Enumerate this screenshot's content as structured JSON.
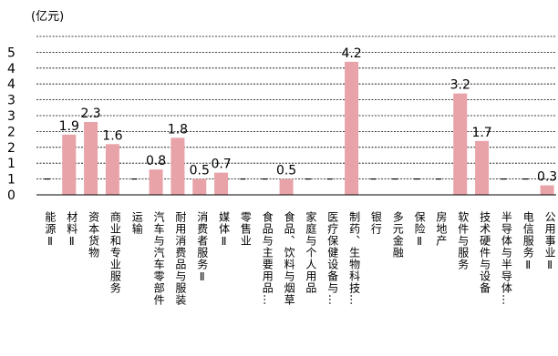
{
  "chart_data": {
    "type": "bar",
    "unit_label": "(亿元)",
    "ylim": [
      0,
      5
    ],
    "yticks": [
      "0",
      "1",
      "1",
      "2",
      "2",
      "3",
      "3",
      "4",
      "4",
      "5"
    ],
    "grid": true,
    "bar_color": "#E8A3A8",
    "categories": [
      "能源Ⅱ",
      "材料Ⅱ",
      "资本货物",
      "商业和专业服务",
      "运输",
      "汽车与汽车零部件",
      "耐用消费品与服装",
      "消费者服务Ⅱ",
      "媒体Ⅱ",
      "零售业",
      "食品与主要用品…",
      "食品、饮料与烟草",
      "家庭与个人用品",
      "医疗保健设备与…",
      "制药、生物科技…",
      "银行",
      "多元金融",
      "保险Ⅱ",
      "房地产",
      "软件与服务",
      "技术硬件与设备",
      "半导体与半导体…",
      "电信服务Ⅱ",
      "公用事业Ⅱ"
    ],
    "values": [
      0,
      1.9,
      2.3,
      1.6,
      0,
      0.8,
      1.8,
      0.5,
      0.7,
      0,
      0,
      0.5,
      0,
      0,
      4.2,
      0,
      0,
      0,
      0,
      3.2,
      1.7,
      0,
      0,
      0.3
    ],
    "data_labels": [
      "",
      "1.9",
      "2.3",
      "1.6",
      "",
      "0.8",
      "1.8",
      "0.5",
      "0.7",
      "",
      "",
      "0.5",
      "",
      "",
      "4.2",
      "",
      "",
      "",
      "",
      "3.2",
      "1.7",
      "",
      "",
      "0.3"
    ]
  }
}
